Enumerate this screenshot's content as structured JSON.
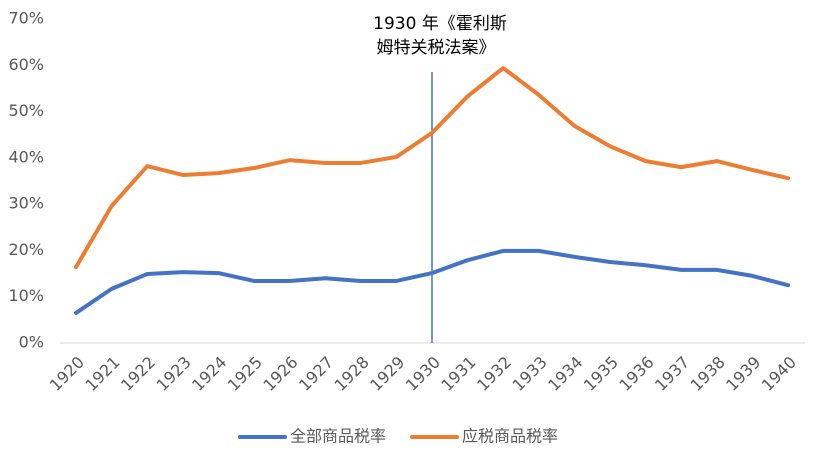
{
  "chart_data": {
    "type": "line",
    "categories": [
      "1920",
      "1921",
      "1922",
      "1923",
      "1924",
      "1925",
      "1926",
      "1927",
      "1928",
      "1929",
      "1930",
      "1931",
      "1932",
      "1933",
      "1934",
      "1935",
      "1936",
      "1937",
      "1938",
      "1939",
      "1940"
    ],
    "series": [
      {
        "name": "全部商品税率",
        "color": "#4472c4",
        "values": [
          6.5,
          11.7,
          14.9,
          15.3,
          15.1,
          13.4,
          13.4,
          14.0,
          13.4,
          13.4,
          15.1,
          17.9,
          19.9,
          19.9,
          18.6,
          17.5,
          16.8,
          15.8,
          15.8,
          14.5,
          12.5
        ]
      },
      {
        "name": "应税商品税率",
        "color": "#ed7d31",
        "values": [
          16.4,
          29.6,
          38.2,
          36.3,
          36.7,
          37.8,
          39.5,
          38.9,
          38.9,
          40.2,
          45.4,
          53.3,
          59.4,
          53.6,
          46.9,
          42.5,
          39.3,
          38.0,
          39.3,
          37.4,
          35.6
        ]
      }
    ],
    "ylim": [
      0,
      70
    ],
    "yticks": [
      {
        "value": 0,
        "label": "0%"
      },
      {
        "value": 10,
        "label": "10%"
      },
      {
        "value": 20,
        "label": "20%"
      },
      {
        "value": 30,
        "label": "30%"
      },
      {
        "value": 40,
        "label": "40%"
      },
      {
        "value": 50,
        "label": "50%"
      },
      {
        "value": 60,
        "label": "60%"
      },
      {
        "value": 70,
        "label": "70%"
      }
    ],
    "grid": false,
    "legend": "bottom",
    "annotation": {
      "x": "1930",
      "color": "#4472c4",
      "lines": [
        "1930 年《霍利斯",
        "姆特关税法案》"
      ]
    }
  }
}
